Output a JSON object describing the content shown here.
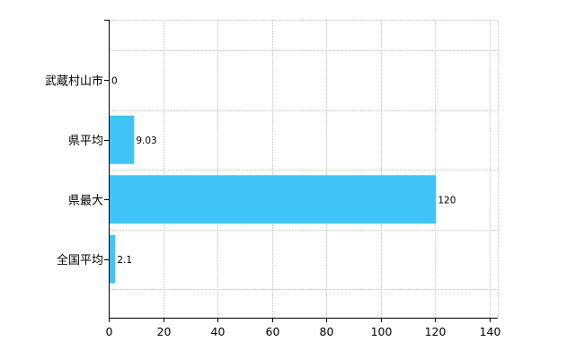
{
  "chart_data": {
    "type": "bar",
    "orientation": "horizontal",
    "categories": [
      "武蔵村山市",
      "県平均",
      "県最大",
      "全国平均"
    ],
    "values": [
      0,
      9.03,
      120,
      2.1
    ],
    "value_labels": [
      "0",
      "9.03",
      "120",
      "2.1"
    ],
    "x_ticks": [
      0,
      20,
      40,
      60,
      80,
      100,
      120,
      140
    ],
    "xlim": [
      0,
      143
    ],
    "grid": true,
    "bar_color": "#40c4f8",
    "legend": "none"
  }
}
